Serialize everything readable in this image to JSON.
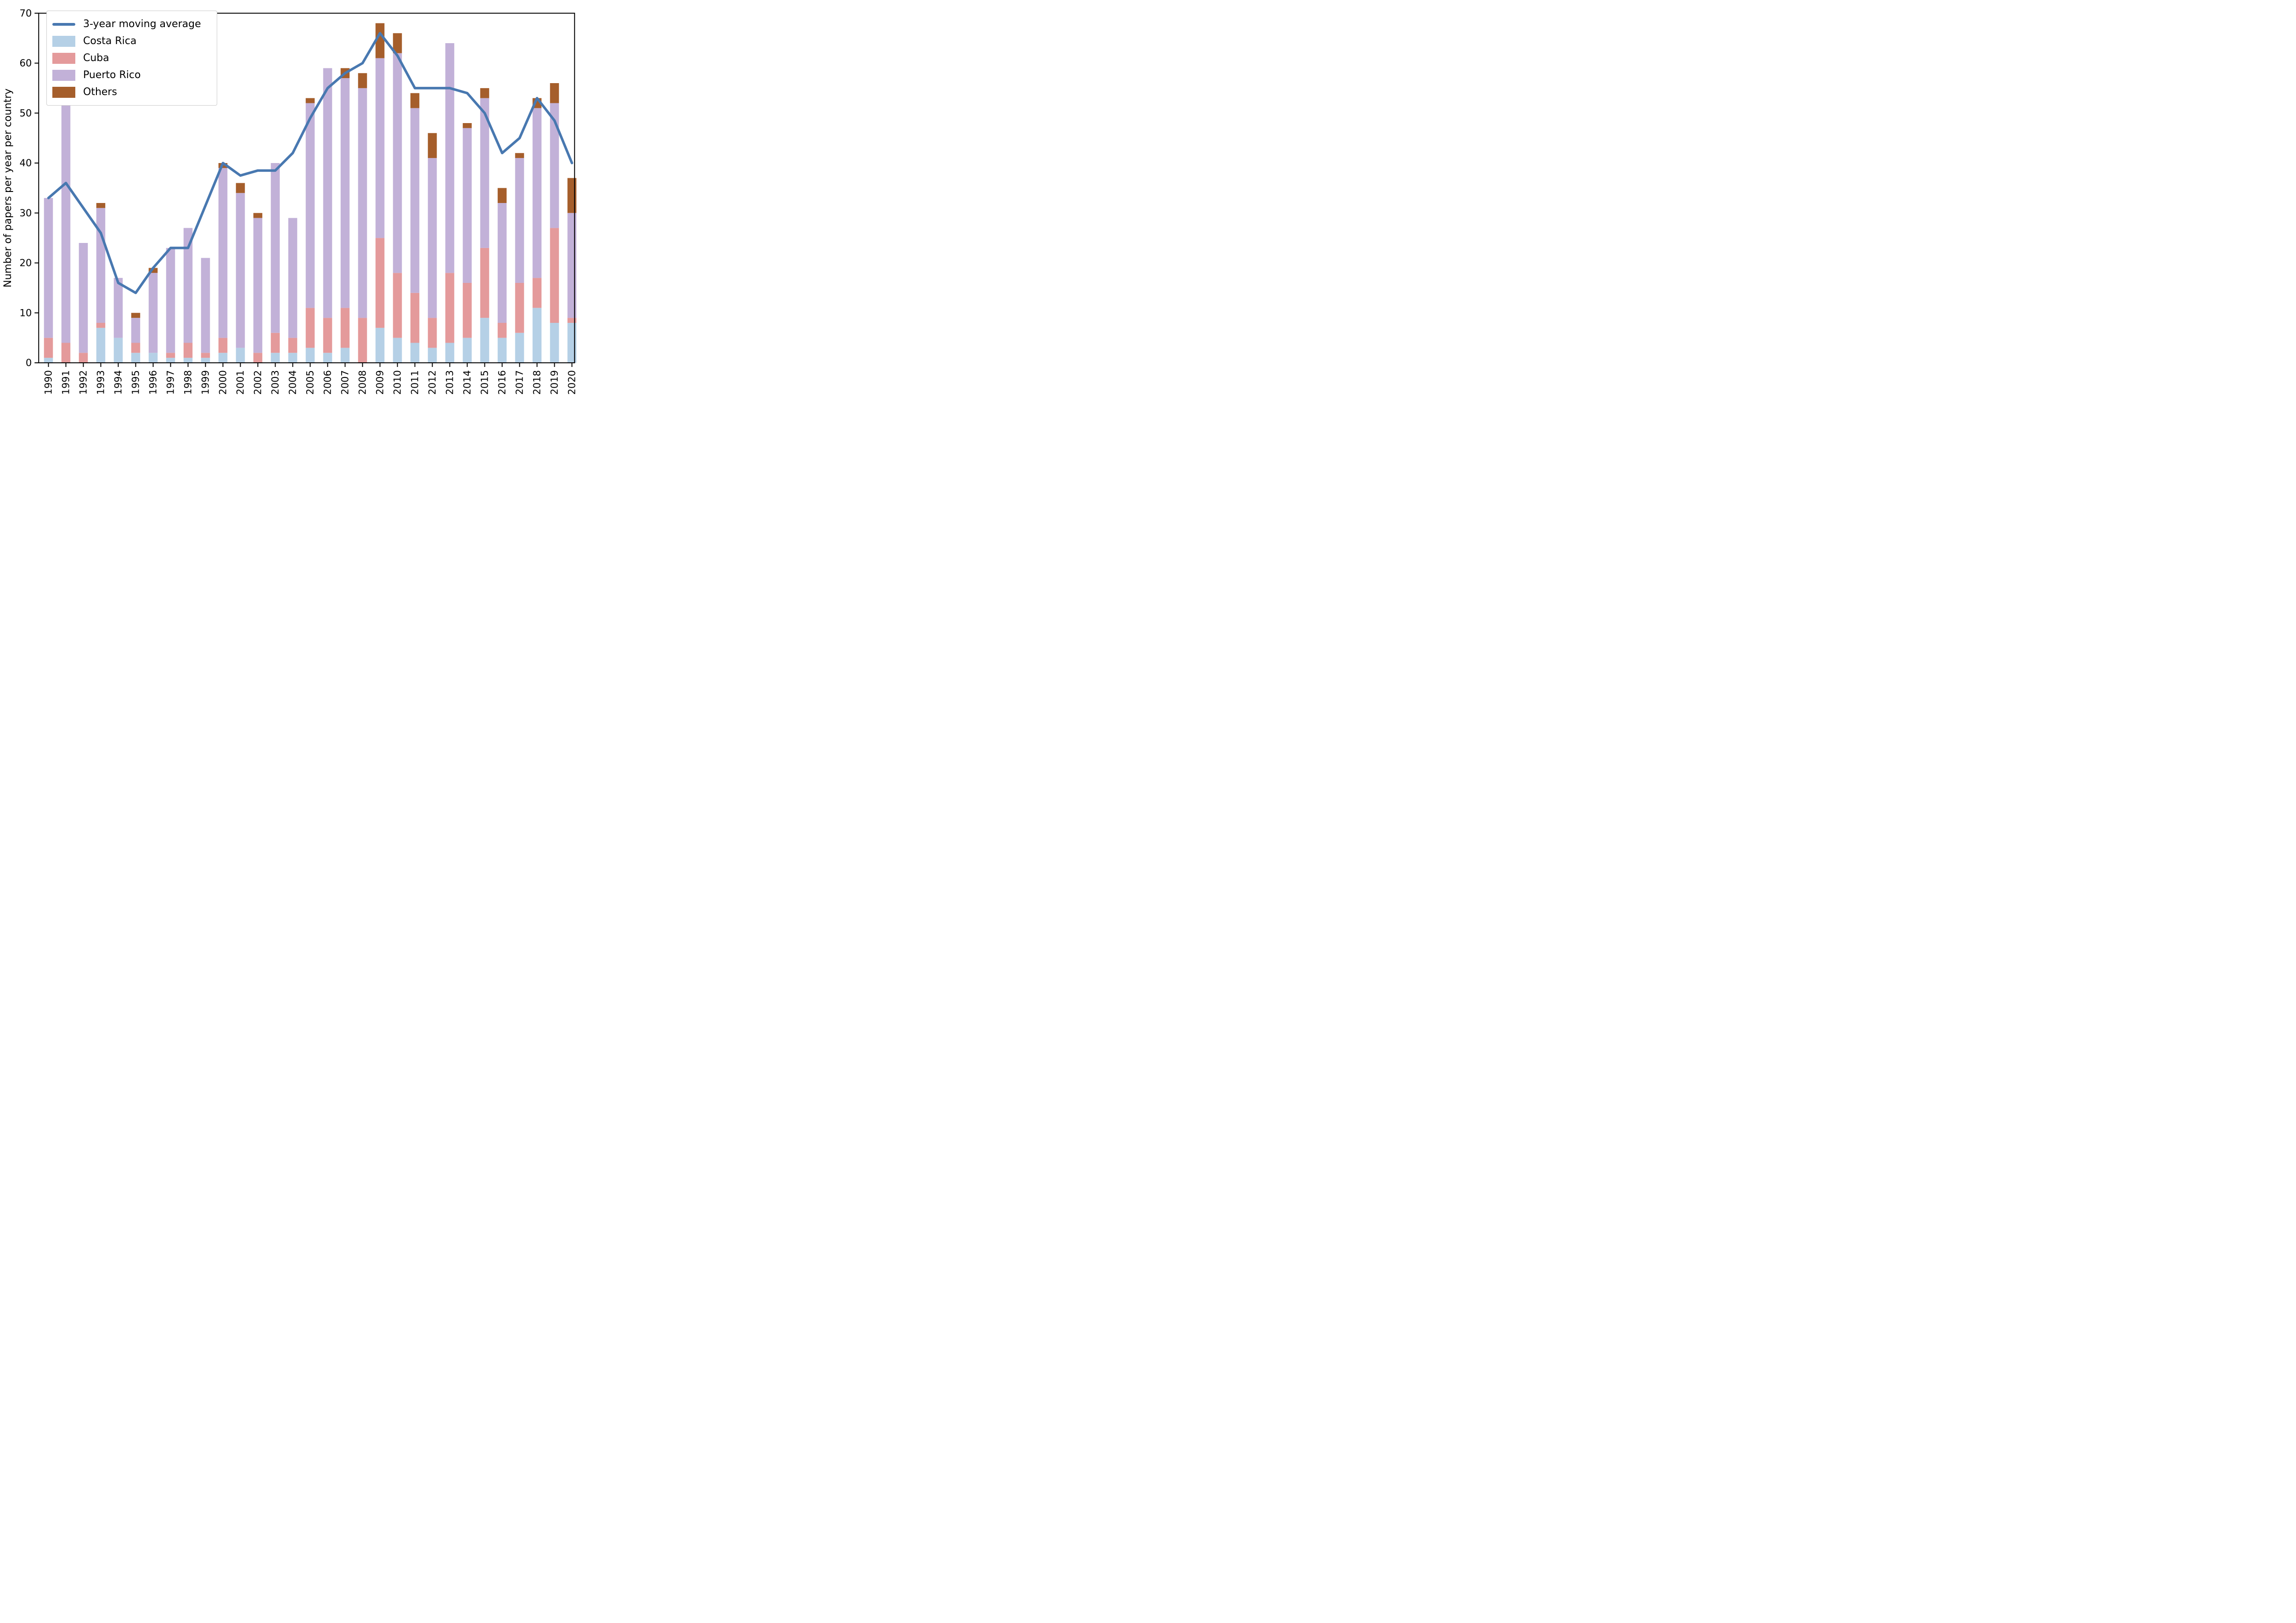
{
  "chart_data": {
    "type": "bar",
    "subtype": "stacked-bars-with-line",
    "title": "",
    "xlabel": "",
    "ylabel": "Number of papers per year per country",
    "ylim": [
      0,
      70
    ],
    "yticks": [
      0,
      10,
      20,
      30,
      40,
      50,
      60,
      70
    ],
    "grid": false,
    "legend_position": "upper-left",
    "categories": [
      "1990",
      "1991",
      "1992",
      "1993",
      "1994",
      "1995",
      "1996",
      "1997",
      "1998",
      "1999",
      "2000",
      "2001",
      "2002",
      "2003",
      "2004",
      "2005",
      "2006",
      "2007",
      "2008",
      "2009",
      "2010",
      "2011",
      "2012",
      "2013",
      "2014",
      "2015",
      "2016",
      "2017",
      "2018",
      "2019",
      "2020"
    ],
    "series": [
      {
        "name": "Costa Rica",
        "color": "#b5d0e6",
        "values": [
          1,
          0,
          0,
          7,
          5,
          2,
          2,
          1,
          1,
          1,
          2,
          3,
          0,
          2,
          2,
          3,
          2,
          3,
          0,
          7,
          5,
          4,
          3,
          4,
          5,
          9,
          5,
          6,
          11,
          8,
          8
        ]
      },
      {
        "name": "Cuba",
        "color": "#e49a9b",
        "values": [
          4,
          4,
          2,
          1,
          0,
          2,
          0,
          1,
          3,
          1,
          3,
          0,
          2,
          4,
          3,
          8,
          7,
          8,
          9,
          18,
          13,
          10,
          6,
          14,
          11,
          14,
          3,
          10,
          6,
          19,
          1
        ]
      },
      {
        "name": "Puerto Rico",
        "color": "#c2b1d8",
        "values": [
          28,
          48,
          22,
          23,
          12,
          5,
          16,
          21,
          23,
          19,
          34,
          31,
          27,
          34,
          24,
          41,
          50,
          46,
          46,
          36,
          44,
          37,
          32,
          46,
          31,
          30,
          24,
          25,
          34,
          25,
          21
        ]
      },
      {
        "name": "Others",
        "color": "#a55e2b",
        "values": [
          0,
          0,
          0,
          1,
          0,
          1,
          1,
          0,
          0,
          0,
          1,
          2,
          1,
          0,
          0,
          1,
          0,
          2,
          3,
          7,
          4,
          3,
          5,
          0,
          1,
          2,
          3,
          1,
          2,
          4,
          7
        ]
      }
    ],
    "bar_totals": [
      33,
      52,
      24,
      32,
      17,
      10,
      19,
      23,
      27,
      21,
      40,
      36,
      30,
      40,
      29,
      53,
      59,
      59,
      58,
      68,
      66,
      54,
      46,
      64,
      48,
      55,
      35,
      42,
      53,
      56,
      37
    ],
    "line_series": {
      "name": "3-year moving average",
      "color": "#4878b0",
      "values": [
        33,
        36,
        31,
        26,
        16,
        14,
        19,
        23,
        23,
        31.5,
        40,
        37.5,
        38.5,
        38.5,
        42,
        49,
        55,
        58,
        60,
        66,
        61.5,
        55,
        55,
        55,
        54,
        50,
        42,
        45,
        53,
        48.5,
        40
      ]
    },
    "legend_entries": [
      "3-year moving average",
      "Costa Rica",
      "Cuba",
      "Puerto Rico",
      "Others"
    ],
    "axis_color": "#000000",
    "background_color": "#ffffff"
  }
}
